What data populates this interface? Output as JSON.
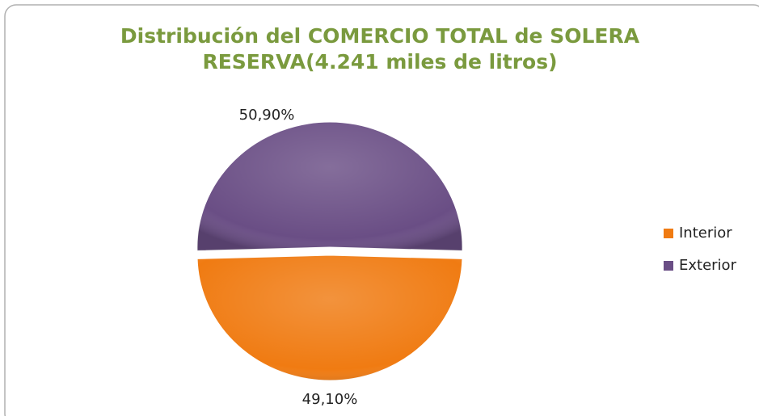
{
  "chart_data": {
    "type": "pie",
    "title": [
      "Distribución del COMERCIO TOTAL de SOLERA",
      "RESERVA(4.241 miles de litros)"
    ],
    "categories": [
      "Interior",
      "Exterior"
    ],
    "values": [
      49.1,
      50.9
    ],
    "value_labels": [
      "49,10%",
      "50,90%"
    ],
    "colors": [
      "#f07b12",
      "#6a4e85"
    ],
    "legend": "right"
  }
}
